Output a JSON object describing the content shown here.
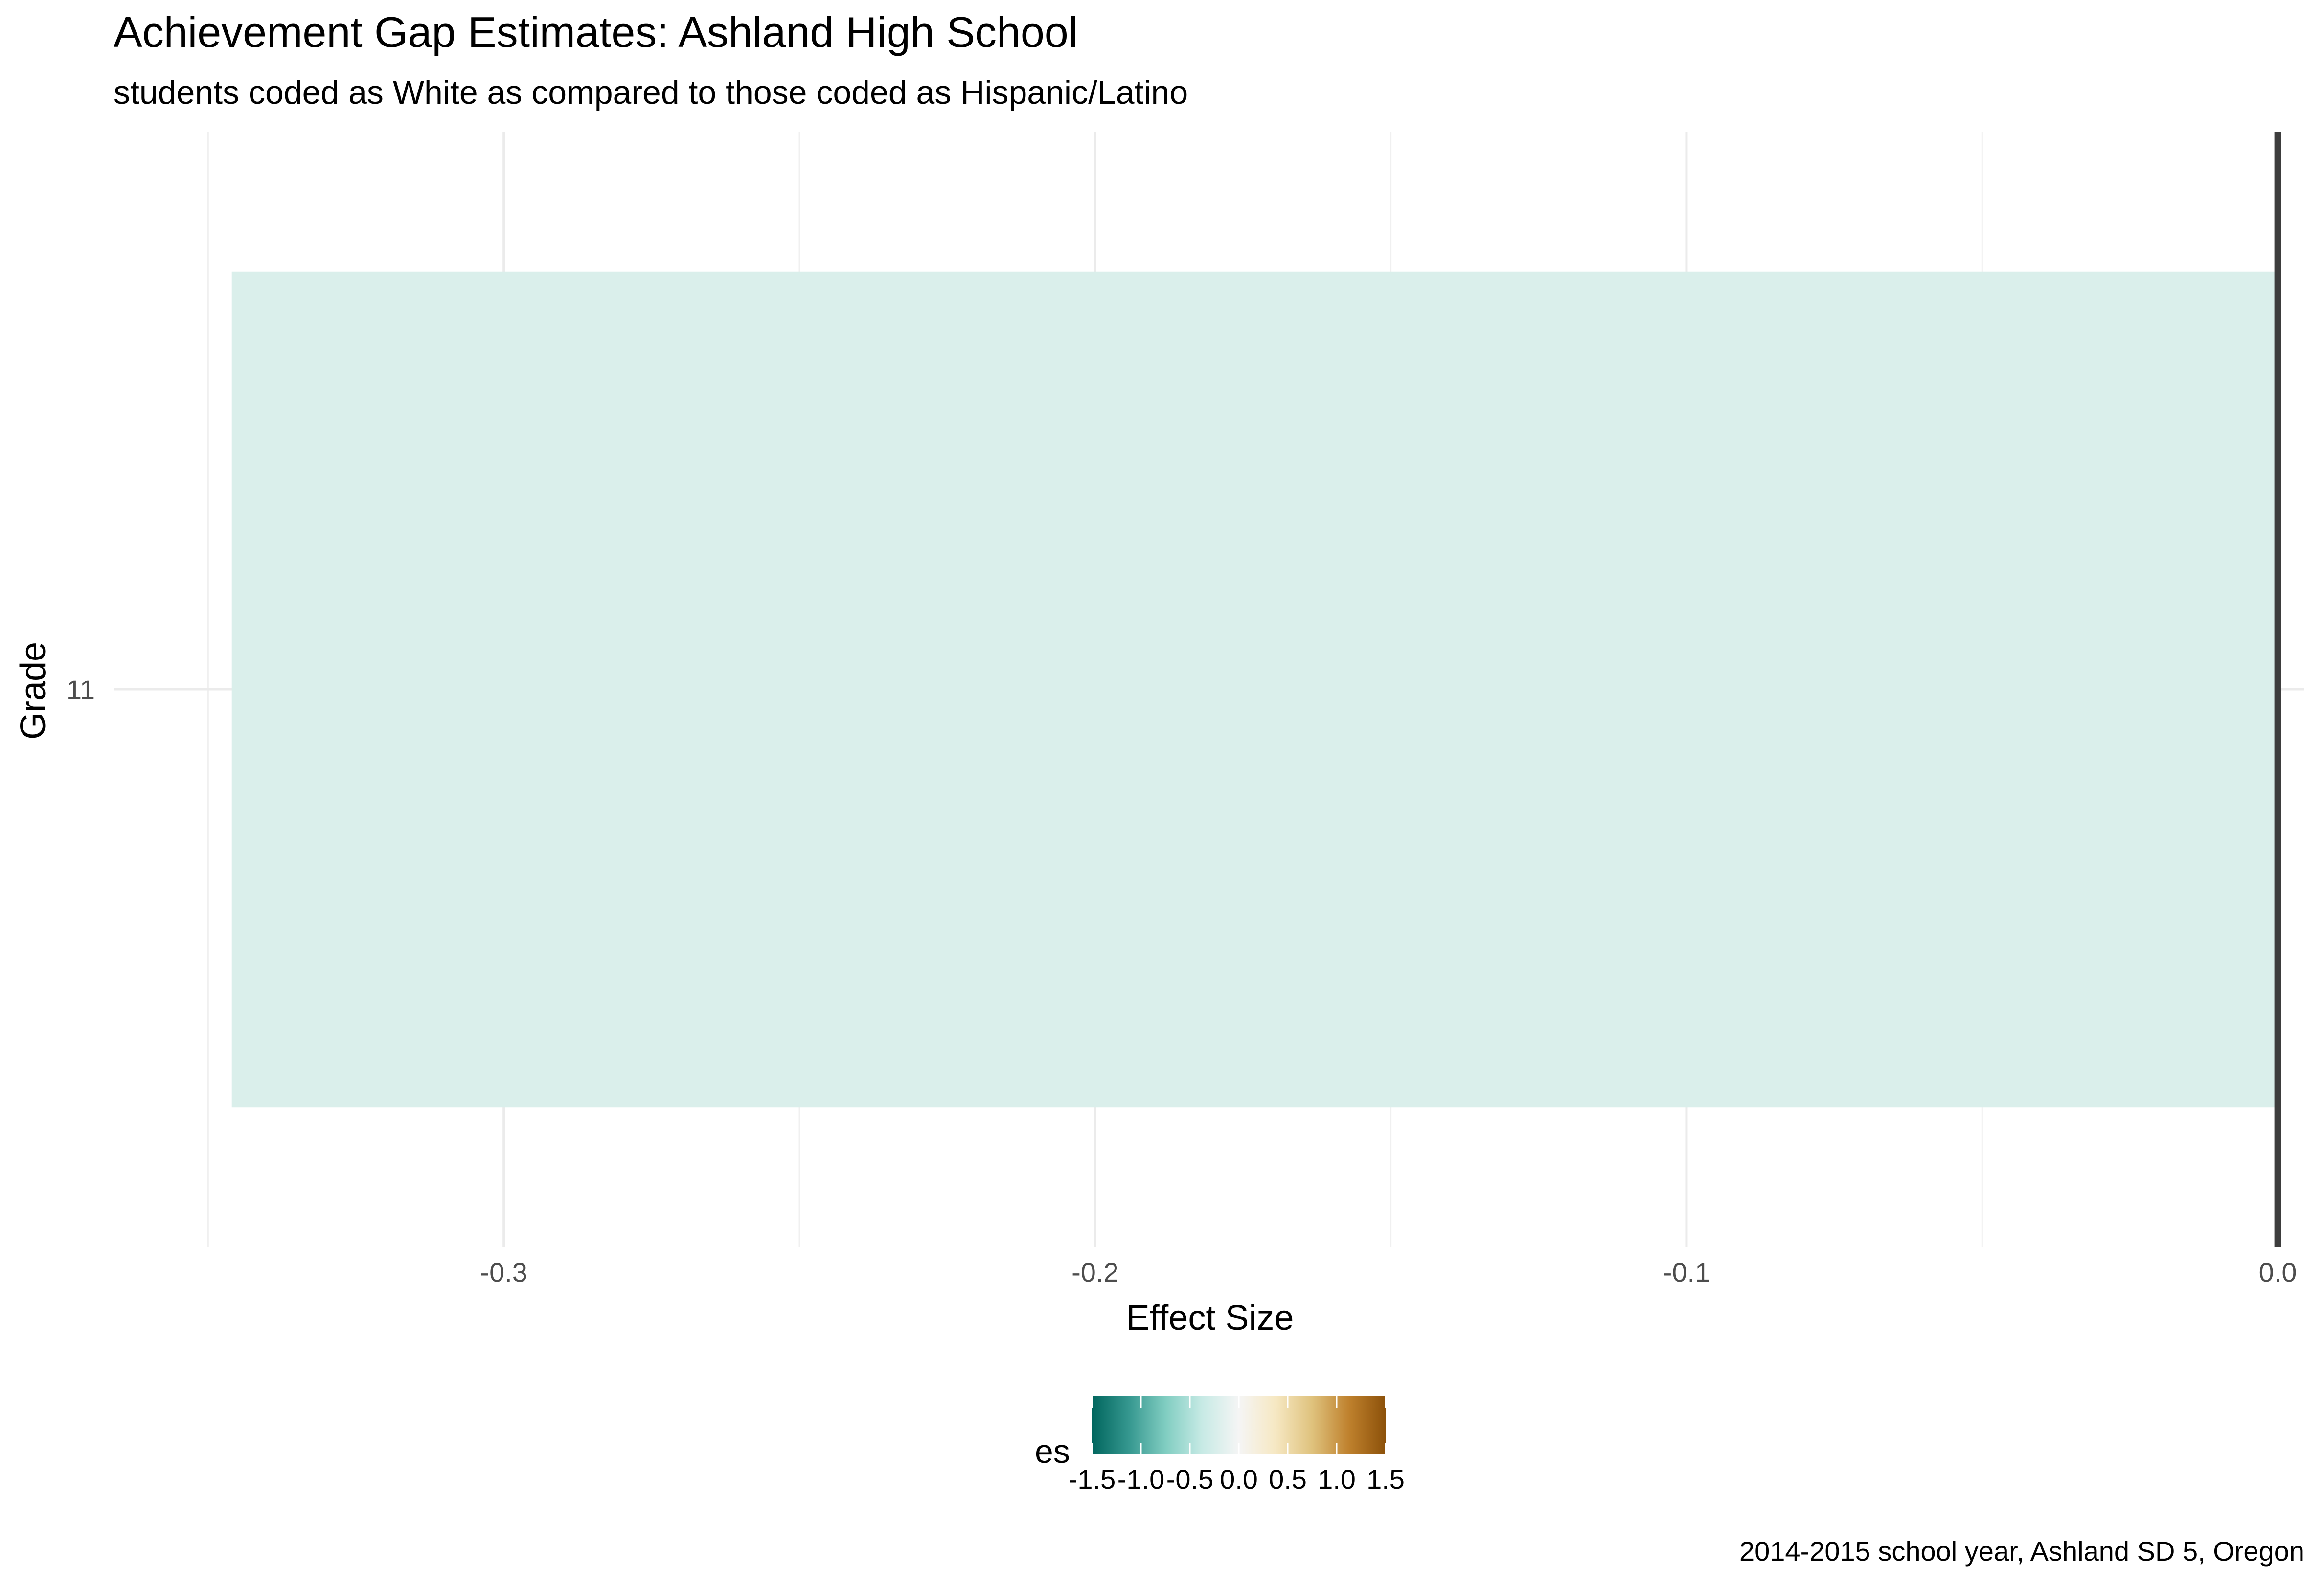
{
  "chart_data": {
    "type": "bar",
    "orientation": "horizontal",
    "title": "Achievement Gap Estimates: Ashland High School",
    "subtitle": "students coded as White as compared to those coded as Hispanic/Latino",
    "caption": "2014-2015 school year, Ashland SD 5, Oregon",
    "xlabel": "Effect Size",
    "ylabel": "Grade",
    "categories": [
      "11"
    ],
    "values": [
      -0.346
    ],
    "xlim": [
      -0.35,
      0.0
    ],
    "xticks": [
      -0.3,
      -0.2,
      -0.1,
      0.0
    ],
    "xtick_labels": [
      "-0.3",
      "-0.2",
      "-0.1",
      "0.0"
    ],
    "grid": true,
    "reference_line": 0.0,
    "legend": {
      "title": "es",
      "position": "bottom",
      "scale": "diverging",
      "range": [
        -1.5,
        1.5
      ],
      "ticks": [
        -1.5,
        -1.0,
        -0.5,
        0.0,
        0.5,
        1.0,
        1.5
      ],
      "tick_labels": [
        "-1.5",
        "-1.0",
        "-0.5",
        "0.0",
        "0.5",
        "1.0",
        "1.5"
      ],
      "colors": [
        "#01665e",
        "#35978f",
        "#80cdc1",
        "#c7eae5",
        "#f5f5f5",
        "#f6e8c3",
        "#dfc27d",
        "#bf812d",
        "#8c510a"
      ]
    },
    "bar_color": "#daefeb",
    "reference_line_color": "#3d3d3d"
  }
}
